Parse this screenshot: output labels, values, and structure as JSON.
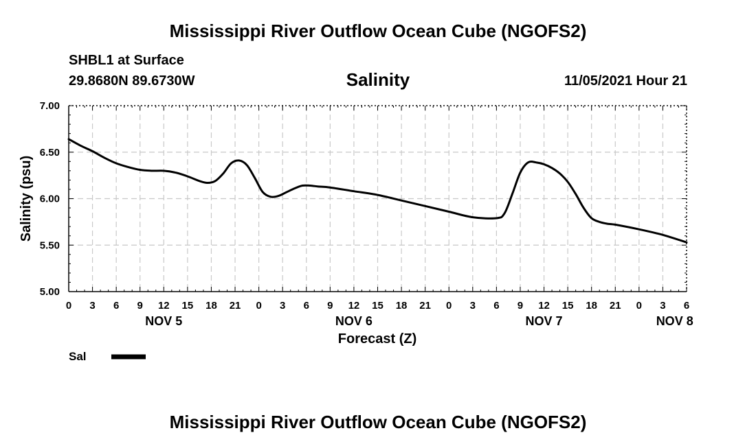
{
  "header": {
    "title": "Mississippi River Outflow Ocean Cube (NGOFS2)",
    "station": "SHBL1 at Surface",
    "coords": "29.8680N  89.6730W",
    "parameter": "Salinity",
    "datetime": "11/05/2021 Hour 21"
  },
  "footer": {
    "title": "Mississippi River Outflow Ocean Cube (NGOFS2)"
  },
  "chart_data": {
    "type": "line",
    "title": "Salinity",
    "xlabel": "Forecast (Z)",
    "ylabel": "Salinity (psu)",
    "xlim": [
      0,
      78
    ],
    "ylim": [
      5.0,
      7.0
    ],
    "grid": true,
    "yticks": [
      5.0,
      5.5,
      6.0,
      6.5,
      7.0
    ],
    "ytick_labels": [
      "5.00",
      "5.50",
      "6.00",
      "6.50",
      "7.00"
    ],
    "xticks": [
      0,
      3,
      6,
      9,
      12,
      15,
      18,
      21,
      24,
      27,
      30,
      33,
      36,
      39,
      42,
      45,
      48,
      51,
      54,
      57,
      60,
      63,
      66,
      69,
      72,
      75,
      78
    ],
    "xtick_labels": [
      "0",
      "3",
      "6",
      "9",
      "12",
      "15",
      "18",
      "21",
      "0",
      "3",
      "6",
      "9",
      "12",
      "15",
      "18",
      "21",
      "0",
      "3",
      "6",
      "9",
      "12",
      "15",
      "18",
      "21",
      "0",
      "3",
      "6"
    ],
    "date_labels": [
      {
        "x": 12,
        "label": "NOV 5"
      },
      {
        "x": 36,
        "label": "NOV 6"
      },
      {
        "x": 60,
        "label": "NOV 7"
      },
      {
        "x": 76.5,
        "label": "NOV 8"
      }
    ],
    "legend": {
      "position": "bottom-left",
      "entries": [
        {
          "name": "Sal",
          "color": "#000000"
        }
      ]
    },
    "series": [
      {
        "name": "Sal",
        "color": "#000000",
        "x": [
          0,
          1.5,
          3,
          4.5,
          6,
          7.5,
          9,
          10.5,
          12,
          13.5,
          15,
          16.5,
          17.5,
          18.5,
          19.5,
          20.5,
          21.5,
          22.5,
          23.5,
          24.5,
          25.5,
          26.5,
          27.5,
          28.5,
          29.5,
          30.5,
          31.5,
          33,
          36,
          39,
          42,
          45,
          48,
          51,
          54,
          55,
          56,
          57,
          58,
          59,
          60,
          61,
          62,
          63,
          64,
          65,
          66,
          67,
          68,
          69,
          72,
          75,
          78
        ],
        "y": [
          6.64,
          6.57,
          6.51,
          6.44,
          6.38,
          6.34,
          6.31,
          6.3,
          6.3,
          6.28,
          6.24,
          6.19,
          6.17,
          6.19,
          6.27,
          6.38,
          6.41,
          6.36,
          6.22,
          6.07,
          6.02,
          6.03,
          6.07,
          6.11,
          6.14,
          6.14,
          6.13,
          6.12,
          6.08,
          6.04,
          5.98,
          5.92,
          5.86,
          5.8,
          5.79,
          5.84,
          6.05,
          6.28,
          6.39,
          6.39,
          6.37,
          6.33,
          6.27,
          6.18,
          6.05,
          5.9,
          5.79,
          5.75,
          5.73,
          5.72,
          5.67,
          5.61,
          5.53
        ]
      }
    ]
  }
}
